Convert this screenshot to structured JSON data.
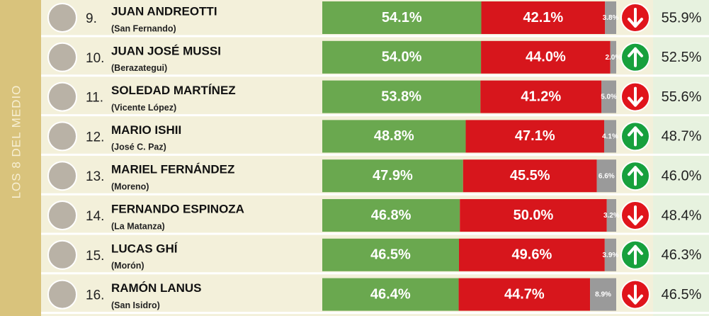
{
  "section_label": "LOS 8 DEL MEDIO",
  "colors": {
    "positive": "#6aa84f",
    "negative": "#d7161c",
    "ns": "#9a9a9a",
    "up": "#17a03d",
    "down": "#e0141c"
  },
  "rows": [
    {
      "rank": "9.",
      "name": "JUAN ANDREOTTI",
      "district": "(San Fernando)",
      "series": [
        {
          "value": 54.1,
          "label": "54.1%"
        },
        {
          "value": 42.1,
          "label": "42.1%"
        },
        {
          "value": 3.8,
          "label": "3.8%"
        }
      ],
      "trend": "down",
      "previous": "55.9%"
    },
    {
      "rank": "10.",
      "name": "JUAN JOSÉ MUSSI",
      "district": "(Berazategui)",
      "series": [
        {
          "value": 54.0,
          "label": "54.0%"
        },
        {
          "value": 44.0,
          "label": "44.0%"
        },
        {
          "value": 2.0,
          "label": "2.0%"
        }
      ],
      "trend": "up",
      "previous": "52.5%"
    },
    {
      "rank": "11.",
      "name": "SOLEDAD MARTÍNEZ",
      "district": "(Vicente López)",
      "series": [
        {
          "value": 53.8,
          "label": "53.8%"
        },
        {
          "value": 41.2,
          "label": "41.2%"
        },
        {
          "value": 5.0,
          "label": "5.0%"
        }
      ],
      "trend": "down",
      "previous": "55.6%"
    },
    {
      "rank": "12.",
      "name": "MARIO ISHII",
      "district": "(José C. Paz)",
      "series": [
        {
          "value": 48.8,
          "label": "48.8%"
        },
        {
          "value": 47.1,
          "label": "47.1%"
        },
        {
          "value": 4.1,
          "label": "4.1%"
        }
      ],
      "trend": "up",
      "previous": "48.7%"
    },
    {
      "rank": "13.",
      "name": "MARIEL FERNÁNDEZ",
      "district": "(Moreno)",
      "series": [
        {
          "value": 47.9,
          "label": "47.9%"
        },
        {
          "value": 45.5,
          "label": "45.5%"
        },
        {
          "value": 6.6,
          "label": "6.6%"
        }
      ],
      "trend": "up",
      "previous": "46.0%"
    },
    {
      "rank": "14.",
      "name": "FERNANDO ESPINOZA",
      "district": "(La Matanza)",
      "series": [
        {
          "value": 46.8,
          "label": "46.8%"
        },
        {
          "value": 50.0,
          "label": "50.0%"
        },
        {
          "value": 3.2,
          "label": "3.2%"
        }
      ],
      "trend": "down",
      "previous": "48.4%"
    },
    {
      "rank": "15.",
      "name": "LUCAS GHÍ",
      "district": "(Morón)",
      "series": [
        {
          "value": 46.5,
          "label": "46.5%"
        },
        {
          "value": 49.6,
          "label": "49.6%"
        },
        {
          "value": 3.9,
          "label": "3.9%"
        }
      ],
      "trend": "up",
      "previous": "46.3%"
    },
    {
      "rank": "16.",
      "name": "RAMÓN LANUS",
      "district": "(San Isidro)",
      "series": [
        {
          "value": 46.4,
          "label": "46.4%"
        },
        {
          "value": 44.7,
          "label": "44.7%"
        },
        {
          "value": 8.9,
          "label": "8.9%"
        }
      ],
      "trend": "down",
      "previous": "46.5%"
    }
  ]
}
